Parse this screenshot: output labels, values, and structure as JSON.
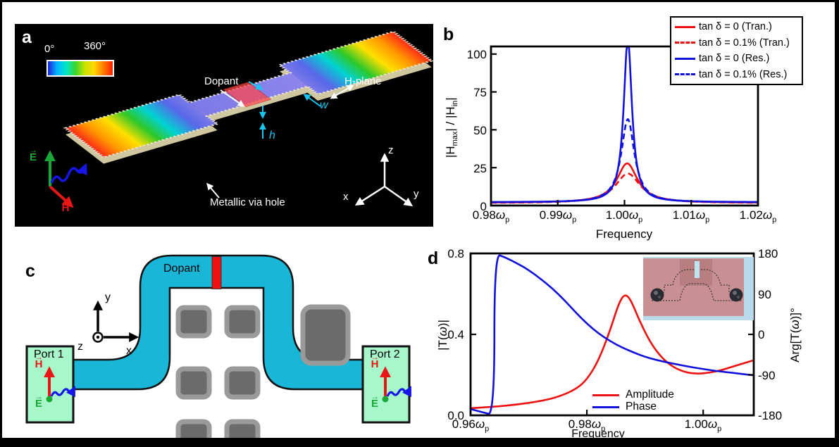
{
  "panel_a": {
    "tag": "a",
    "colorbar_min": "0°",
    "colorbar_max": "360°",
    "colorbar_colors": [
      "#1c24d8",
      "#00b4ff",
      "#00e6c8",
      "#3ed428",
      "#c8e400",
      "#ffd800",
      "#ff7c00",
      "#ff1e00"
    ],
    "labels": {
      "dopant": "Dopant",
      "h_plane": "H-plane",
      "w": "w",
      "h": "h",
      "via": "Metallic via hole",
      "E": "E",
      "H": "H",
      "x": "x",
      "y": "y",
      "z": "z"
    },
    "icons": {
      "vector_arrow": "→"
    }
  },
  "panel_b": {
    "tag": "b",
    "ylabel": {
      "p1": "|H",
      "s1": "max",
      "p2": "| / |H",
      "s2": "in",
      "p3": "|"
    },
    "xlabel": "Frequency",
    "omega": "ω",
    "omega_sub": "p",
    "y_ticks": [
      "100",
      "75",
      "50",
      "25",
      "0"
    ],
    "x_ticks": [
      "0.98",
      "0.99",
      "1.00",
      "1.01",
      "1.02"
    ],
    "legend": [
      {
        "label": "tan δ = 0 (Tran.)",
        "color": "#ee1111",
        "style": "solid"
      },
      {
        "label": "tan δ = 0.1% (Tran.)",
        "color": "#ee1111",
        "style": "dashed"
      },
      {
        "label": "tan δ = 0 (Res.)",
        "color": "#1111dd",
        "style": "solid"
      },
      {
        "label": "tan δ = 0.1% (Res.)",
        "color": "#1111dd",
        "style": "dashed"
      }
    ],
    "chart_data": {
      "type": "line",
      "xlabel": "Frequency",
      "ylabel": "|Hmax| / |Hin|",
      "x_range": [
        0.98,
        1.02
      ],
      "x_unit": "ωp",
      "y_range": [
        0,
        105
      ],
      "x_tick_values": [
        0.98,
        0.99,
        1.0,
        1.01,
        1.02
      ],
      "y_tick_values": [
        0,
        25,
        50,
        75,
        100
      ],
      "legend_position": "top-right",
      "grid": false,
      "series": [
        {
          "name": "tan δ = 0 (Tran.)",
          "color": "#ee1111",
          "style": "solid",
          "model": "lorentzian",
          "center": 1.0004,
          "hwhm": 0.0019,
          "peak": 26,
          "baseline": 1.8
        },
        {
          "name": "tan δ = 0.1% (Tran.)",
          "color": "#ee1111",
          "style": "dashed",
          "model": "lorentzian",
          "center": 1.0005,
          "hwhm": 0.0023,
          "peak": 19.5,
          "baseline": 1.6
        },
        {
          "name": "tan δ = 0 (Res.)",
          "color": "#1111dd",
          "style": "solid",
          "model": "lorentzian",
          "center": 1.0005,
          "hwhm": 0.00075,
          "peak": 108,
          "baseline": 2.2
        },
        {
          "name": "tan δ = 0.1% (Res.)",
          "color": "#1111dd",
          "style": "dashed",
          "model": "lorentzian",
          "center": 1.0005,
          "hwhm": 0.0012,
          "peak": 55,
          "baseline": 2.0
        }
      ]
    }
  },
  "panel_c": {
    "tag": "c",
    "labels": {
      "dopant": "Dopant",
      "port1": "Port 1",
      "port2": "Port 2",
      "x": "x",
      "y": "y",
      "z": "z",
      "H": "H",
      "E": "E"
    },
    "colors": {
      "waveguide": "#1ab6d8",
      "dopant": "#ee1111",
      "port": "#a8f7cb",
      "block": "#6b6b6b",
      "block_edge": "#9a9a9a"
    },
    "icons": {
      "vector_arrow": "→"
    }
  },
  "panel_d": {
    "tag": "d",
    "ylabel_left": {
      "p1": "|T(",
      "om": "ω",
      "p2": ")|"
    },
    "ylabel_right": {
      "p1": "Arg[T(",
      "om": "ω",
      "p2": ")]°"
    },
    "xlabel": "Frequency",
    "omega": "ω",
    "omega_sub": "p",
    "y_ticks_left": [
      "0.8",
      "0.4",
      "0.0"
    ],
    "y_ticks_right": [
      "180",
      "90",
      "0",
      "-90",
      "-180"
    ],
    "x_ticks": [
      "0.96",
      "0.98",
      "1.00"
    ],
    "legend": [
      {
        "label": "Amplitude",
        "color": "#ee1111"
      },
      {
        "label": "Phase",
        "color": "#1111dd"
      }
    ],
    "chart_data": {
      "type": "line",
      "xlabel": "Frequency",
      "x_range": [
        0.96,
        1.0087
      ],
      "x_unit": "ωp",
      "left_axis": {
        "label": "|T(ω)|",
        "range": [
          0,
          0.8
        ],
        "ticks": [
          0,
          0.4,
          0.8
        ]
      },
      "right_axis": {
        "label": "Arg[T(ω)]°",
        "range": [
          -180,
          180
        ],
        "ticks": [
          -180,
          -90,
          0,
          90,
          180
        ]
      },
      "grid": false,
      "legend_position": "bottom-center",
      "series": [
        {
          "name": "Amplitude",
          "axis": "left",
          "color": "#ee1111",
          "points": [
            [
              0.96,
              0.035
            ],
            [
              0.964,
              0.042
            ],
            [
              0.968,
              0.053
            ],
            [
              0.972,
              0.07
            ],
            [
              0.975,
              0.09
            ],
            [
              0.978,
              0.127
            ],
            [
              0.98,
              0.175
            ],
            [
              0.982,
              0.27
            ],
            [
              0.984,
              0.42
            ],
            [
              0.9855,
              0.555
            ],
            [
              0.9865,
              0.6
            ],
            [
              0.9875,
              0.575
            ],
            [
              0.989,
              0.47
            ],
            [
              0.991,
              0.355
            ],
            [
              0.993,
              0.28
            ],
            [
              0.995,
              0.235
            ],
            [
              0.997,
              0.212
            ],
            [
              0.999,
              0.205
            ],
            [
              1.001,
              0.21
            ],
            [
              1.003,
              0.222
            ],
            [
              1.005,
              0.24
            ],
            [
              1.0087,
              0.272
            ]
          ]
        },
        {
          "name": "Phase",
          "axis": "right",
          "color": "#1111dd",
          "points": [
            [
              0.96,
              -166
            ],
            [
              0.962,
              -173
            ],
            [
              0.9641,
              -180
            ],
            [
              0.9641,
              180
            ],
            [
              0.966,
              171
            ],
            [
              0.968,
              158
            ],
            [
              0.97,
              143
            ],
            [
              0.972,
              124
            ],
            [
              0.974,
              103
            ],
            [
              0.976,
              78
            ],
            [
              0.978,
              50
            ],
            [
              0.98,
              24
            ],
            [
              0.982,
              2
            ],
            [
              0.984,
              -15
            ],
            [
              0.986,
              -29
            ],
            [
              0.988,
              -40
            ],
            [
              0.99,
              -50
            ],
            [
              0.992,
              -57
            ],
            [
              0.994,
              -63
            ],
            [
              0.996,
              -68
            ],
            [
              0.998,
              -73
            ],
            [
              1.0,
              -77
            ],
            [
              1.002,
              -81
            ],
            [
              1.004,
              -84
            ],
            [
              1.006,
              -87
            ],
            [
              1.0087,
              -91
            ]
          ]
        }
      ]
    }
  }
}
